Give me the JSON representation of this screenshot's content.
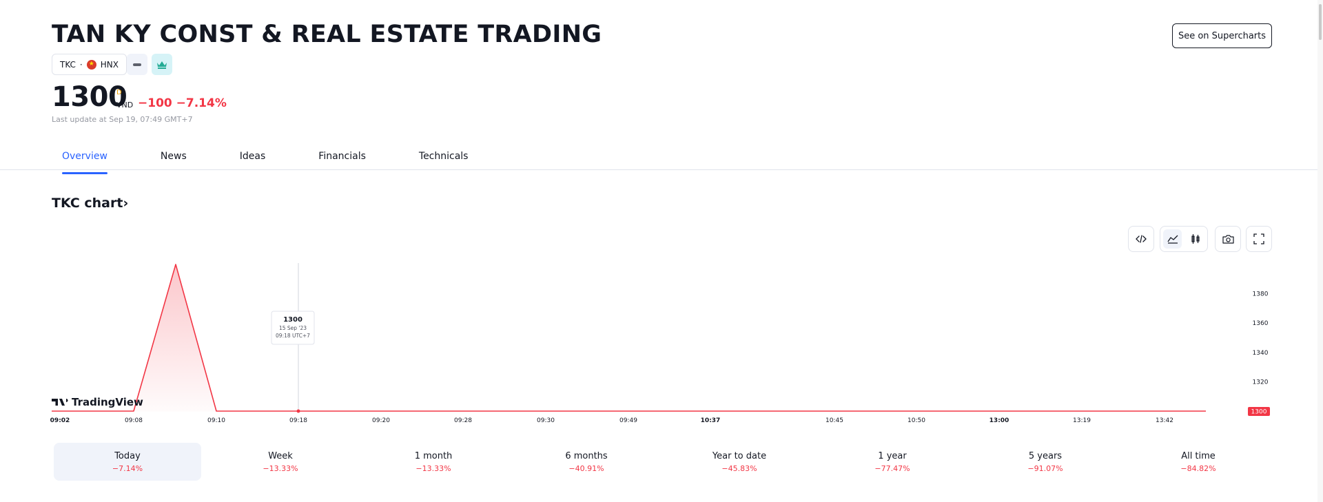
{
  "header": {
    "title": "TAN KY CONST & REAL ESTATE TRADING",
    "symbol": "TKC",
    "exchange": "HNX",
    "supercharts_label": "See on Supercharts"
  },
  "quote": {
    "price": "1300",
    "currency_sup": "D",
    "currency": "VND",
    "change": "−100 −7.14%",
    "last_update": "Last update at Sep 19, 07:49 GMT+7"
  },
  "tabs": [
    {
      "label": "Overview",
      "active": true
    },
    {
      "label": "News"
    },
    {
      "label": "Ideas"
    },
    {
      "label": "Financials"
    },
    {
      "label": "Technicals"
    }
  ],
  "chart_section": {
    "heading": "TKC chart",
    "heading_chevron": "›"
  },
  "toolbar": {
    "icons": [
      "embed-code-icon",
      "area-chart-icon",
      "candles-icon",
      "camera-icon",
      "fullscreen-icon"
    ]
  },
  "chart_data": {
    "type": "area",
    "logo": "TradingView",
    "x": [
      "09:02",
      "09:08",
      "09:10",
      "09:18",
      "09:20",
      "09:28",
      "09:30",
      "09:49",
      "10:37",
      "10:45",
      "10:50",
      "13:00",
      "13:19",
      "13:42"
    ],
    "bold_ticks": [
      "09:02",
      "10:37",
      "13:00"
    ],
    "series": [
      {
        "points": [
          {
            "x": "09:02",
            "y": 1300
          },
          {
            "x": "09:08",
            "y": 1300
          },
          {
            "x": "09:10",
            "y": 1300
          },
          {
            "x": "09:18",
            "y": 1300
          },
          {
            "x": "09:20",
            "y": 1300
          },
          {
            "x": "09:28",
            "y": 1300
          },
          {
            "x": "09:30",
            "y": 1300
          },
          {
            "x": "09:49",
            "y": 1300
          },
          {
            "x": "10:37",
            "y": 1300
          },
          {
            "x": "10:45",
            "y": 1300
          },
          {
            "x": "10:50",
            "y": 1300
          },
          {
            "x": "13:00",
            "y": 1300
          },
          {
            "x": "13:19",
            "y": 1300
          },
          {
            "x": "13:42",
            "y": 1300
          }
        ],
        "peak": {
          "y": 1400
        },
        "color": "#f23645"
      }
    ],
    "y_ticks": [
      1320,
      1340,
      1360,
      1380
    ],
    "ylim": [
      1300,
      1400
    ],
    "last_value_label": "1300",
    "tooltip": {
      "value": "1300",
      "date": "15 Sep '23",
      "time": "09:18 UTC+7",
      "x": "09:18"
    },
    "colors": {
      "line": "#f23645",
      "fill": "#f23645",
      "grid": "#e0e3eb"
    }
  },
  "periods": [
    {
      "label": "Today",
      "change": "−7.14%",
      "active": true
    },
    {
      "label": "Week",
      "change": "−13.33%"
    },
    {
      "label": "1 month",
      "change": "−13.33%"
    },
    {
      "label": "6 months",
      "change": "−40.91%"
    },
    {
      "label": "Year to date",
      "change": "−45.83%"
    },
    {
      "label": "1 year",
      "change": "−77.47%"
    },
    {
      "label": "5 years",
      "change": "−91.07%"
    },
    {
      "label": "All time",
      "change": "−84.82%"
    }
  ]
}
